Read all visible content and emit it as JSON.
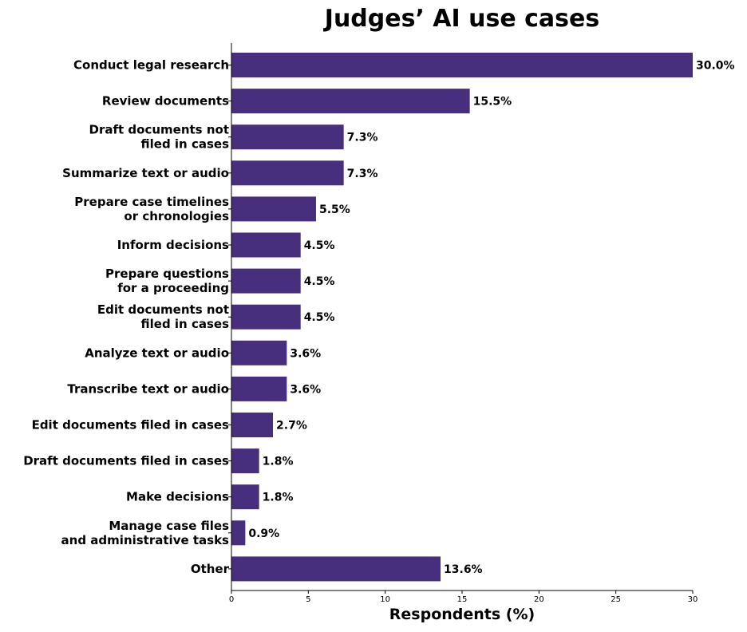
{
  "chart_data": {
    "type": "bar",
    "orientation": "horizontal",
    "title": "Judges’ AI use cases",
    "xlabel": "Respondents (%)",
    "ylabel": "",
    "xlim": [
      0,
      30
    ],
    "xticks": [
      0,
      5,
      10,
      15,
      20,
      25,
      30
    ],
    "grid": false,
    "bar_color": "#482f7e",
    "categories": [
      "Conduct legal research",
      "Review documents",
      "Draft documents not\nfiled in cases",
      "Summarize text or audio",
      "Prepare case timelines\nor chronologies",
      "Inform decisions",
      "Prepare questions\nfor a proceeding",
      "Edit documents not\nfiled in cases",
      "Analyze text or audio",
      "Transcribe text or audio",
      "Edit documents filed in cases",
      "Draft documents filed in cases",
      "Make decisions",
      "Manage case files\nand administrative tasks",
      "Other"
    ],
    "values": [
      30.0,
      15.5,
      7.3,
      7.3,
      5.5,
      4.5,
      4.5,
      4.5,
      3.6,
      3.6,
      2.7,
      1.8,
      1.8,
      0.9,
      13.6
    ],
    "data_labels": [
      "30.0%",
      "15.5%",
      "7.3%",
      "7.3%",
      "5.5%",
      "4.5%",
      "4.5%",
      "4.5%",
      "3.6%",
      "3.6%",
      "2.7%",
      "1.8%",
      "1.8%",
      "0.9%",
      "13.6%"
    ]
  }
}
